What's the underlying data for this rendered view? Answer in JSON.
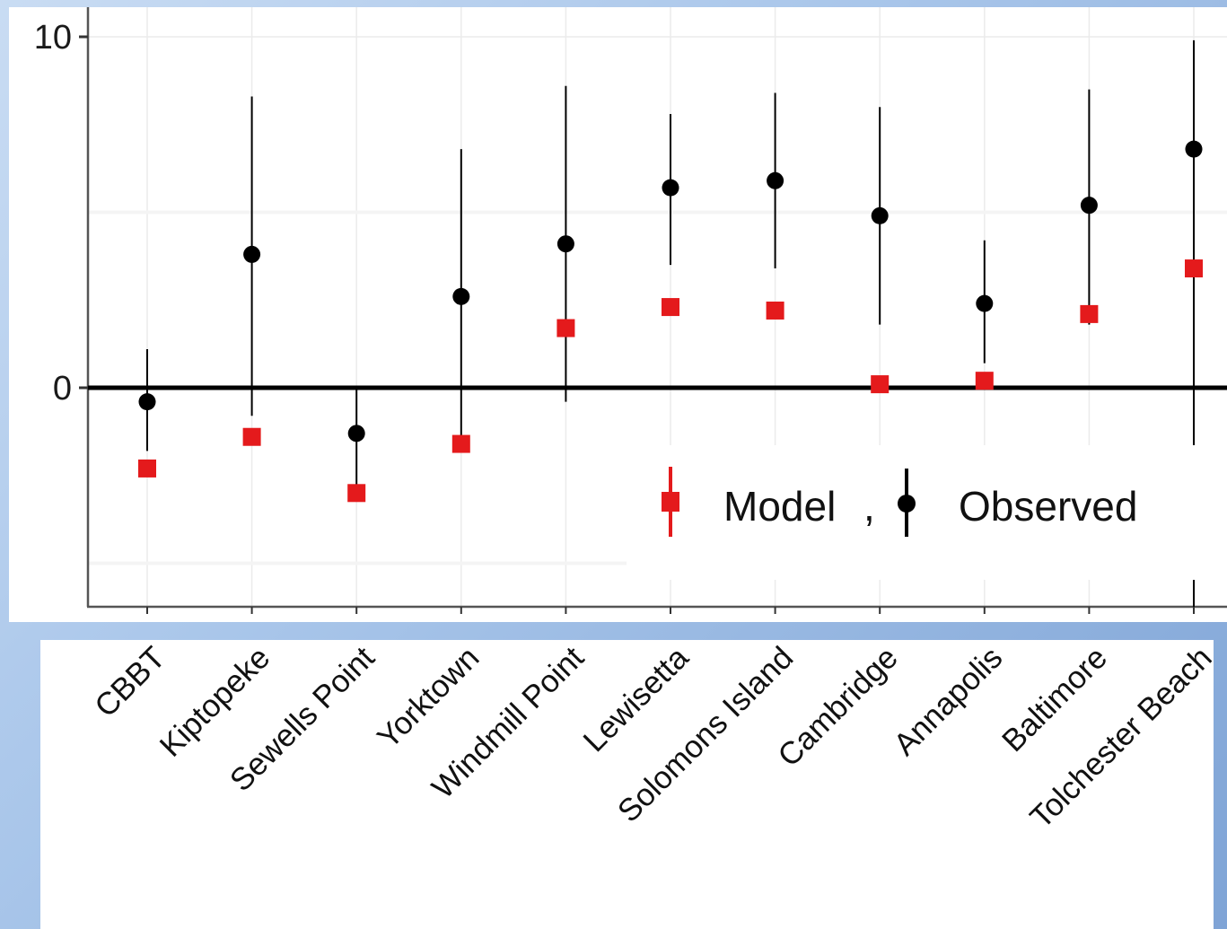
{
  "chart_data": {
    "type": "scatter",
    "categories": [
      "CBBT",
      "Kiptopeke",
      "Sewells Point",
      "Yorktown",
      "Windmill Point",
      "Lewisetta",
      "Solomons Island",
      "Cambridge",
      "Annapolis",
      "Baltimore",
      "Tolchester Beach"
    ],
    "series": [
      {
        "name": "Observed",
        "color": "#000000",
        "marker": "circle",
        "values": [
          -0.4,
          3.8,
          -1.3,
          2.6,
          4.1,
          5.7,
          5.9,
          4.9,
          2.4,
          5.2,
          6.8
        ],
        "error_low": [
          -1.8,
          -0.8,
          -2.9,
          -1.5,
          -0.4,
          3.5,
          3.4,
          1.8,
          0.7,
          1.8,
          null
        ],
        "error_high": [
          1.1,
          8.3,
          0.0,
          6.8,
          8.6,
          7.8,
          8.4,
          8.0,
          4.2,
          8.5,
          9.9
        ]
      },
      {
        "name": "Model",
        "color": "#e41a1c",
        "marker": "square",
        "values": [
          -2.3,
          -1.4,
          -3.0,
          -1.6,
          1.7,
          2.3,
          2.2,
          0.1,
          0.2,
          2.1,
          3.4
        ]
      }
    ],
    "y_ticks": [
      {
        "value": 0,
        "label": "0"
      },
      {
        "value": 10,
        "label": "10"
      }
    ],
    "ylim": [
      -6.3,
      10.8
    ],
    "grid": true,
    "zero_line": true,
    "legend": {
      "position": "bottom-right",
      "model_label": "Model",
      "separator": ",",
      "observed_label": "Observed"
    }
  }
}
